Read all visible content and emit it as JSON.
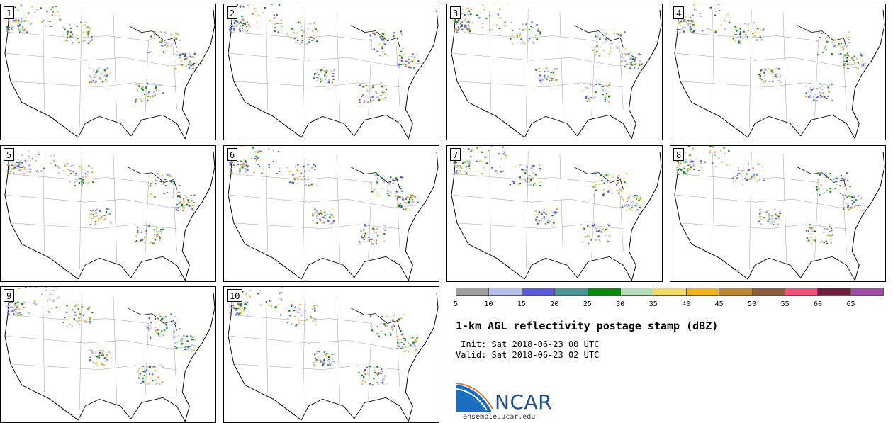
{
  "panels": [
    {
      "label": "1"
    },
    {
      "label": "2"
    },
    {
      "label": "3"
    },
    {
      "label": "4"
    },
    {
      "label": "5"
    },
    {
      "label": "6"
    },
    {
      "label": "7"
    },
    {
      "label": "8"
    },
    {
      "label": "9"
    },
    {
      "label": "10"
    }
  ],
  "colorbar": {
    "colors": [
      "#a0a0a0",
      "#b4bee9",
      "#5a5ad8",
      "#4a9696",
      "#0a8a0a",
      "#b9dcb9",
      "#f0dc64",
      "#f0b41e",
      "#be8732",
      "#8c5a3c",
      "#f05078",
      "#6e1e3c",
      "#a04ba5"
    ],
    "ticks": [
      "5",
      "10",
      "15",
      "20",
      "25",
      "30",
      "35",
      "40",
      "45",
      "50",
      "55",
      "60",
      "65"
    ]
  },
  "title": "1-km AGL reflectivity postage stamp (dBZ)",
  "init_text": " Init: Sat 2018-06-23 00 UTC",
  "valid_text": "Valid: Sat 2018-06-23 02 UTC",
  "logo": {
    "name": "NCAR",
    "url": "ensemble.ucar.edu"
  }
}
